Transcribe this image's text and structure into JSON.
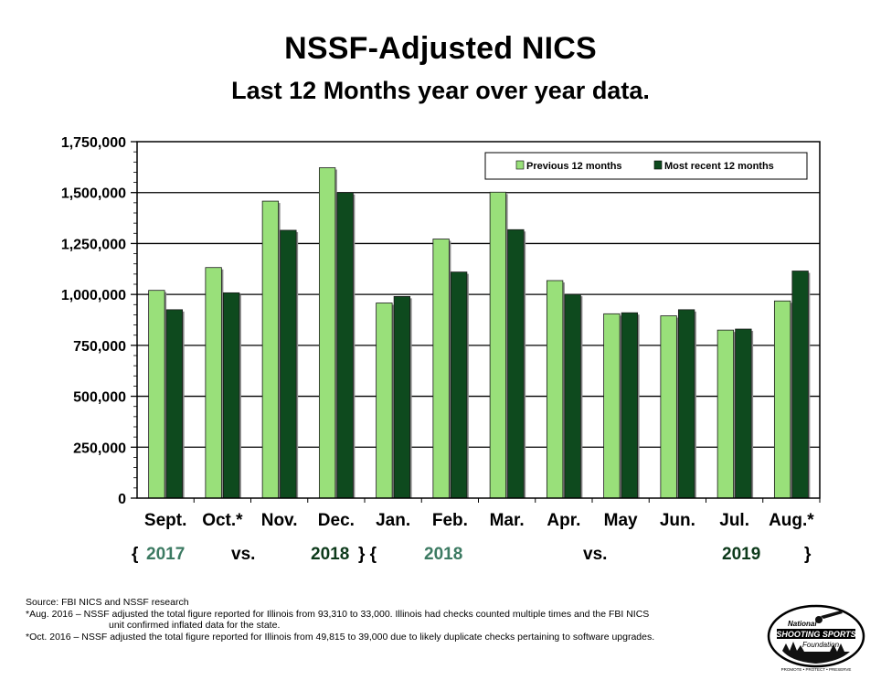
{
  "title": "NSSF-Adjusted NICS",
  "subtitle": "Last 12 Months year over year data.",
  "colors": {
    "previous": "#99e07a",
    "recent": "#0e4a1e",
    "period_light": "#3c7a62",
    "period_dark": "#0d3a1b"
  },
  "chart_data": {
    "type": "bar",
    "title": "NSSF-Adjusted NICS",
    "subtitle": "Last 12 Months year over year data.",
    "categories": [
      "Sept.",
      "Oct.*",
      "Nov.",
      "Dec.",
      "Jan.",
      "Feb.",
      "Mar.",
      "Apr.",
      "May",
      "Jun.",
      "Jul.",
      "Aug.*"
    ],
    "series": [
      {
        "name": "Previous 12 months",
        "values": [
          1020000,
          1132000,
          1458000,
          1622000,
          958000,
          1272000,
          1502000,
          1068000,
          905000,
          895000,
          825000,
          968000
        ]
      },
      {
        "name": "Most recent 12 months",
        "values": [
          925000,
          1008000,
          1315000,
          1500000,
          990000,
          1110000,
          1318000,
          1000000,
          910000,
          925000,
          830000,
          1115000
        ]
      }
    ],
    "yticks": [
      "1,750,000",
      "1,500,000",
      "1,250,000",
      "1,000,000",
      "750,000",
      "500,000",
      "250,000",
      "0"
    ],
    "ylim": [
      0,
      1750000
    ],
    "grid": true,
    "legend_position": "top-right"
  },
  "period_labels": {
    "brace_open_1": "{",
    "year_2017": "2017",
    "vs_1": "vs.",
    "year_2018_a": "2018",
    "brace_close_open": "} {",
    "year_2018_b": "2018",
    "vs_2": "vs.",
    "year_2019": "2019",
    "brace_close_2": "}"
  },
  "source": {
    "line1": "Source: FBI NICS and NSSF research",
    "line2": "*Aug. 2016 – NSSF adjusted the total figure reported for Illinois from 93,310 to 33,000. Illinois had checks counted multiple times and the FBI NICS",
    "line3": "unit confirmed inflated data for the state.",
    "line4": "*Oct. 2016 – NSSF adjusted the total figure reported for Illinois from 49,815 to 39,000 due to likely duplicate checks pertaining to software upgrades."
  },
  "logo": {
    "top": "National",
    "main": "SHOOTING SPORTS",
    "bottom": "Foundation",
    "motto": "PROMOTE • PROTECT • PRESERVE"
  }
}
